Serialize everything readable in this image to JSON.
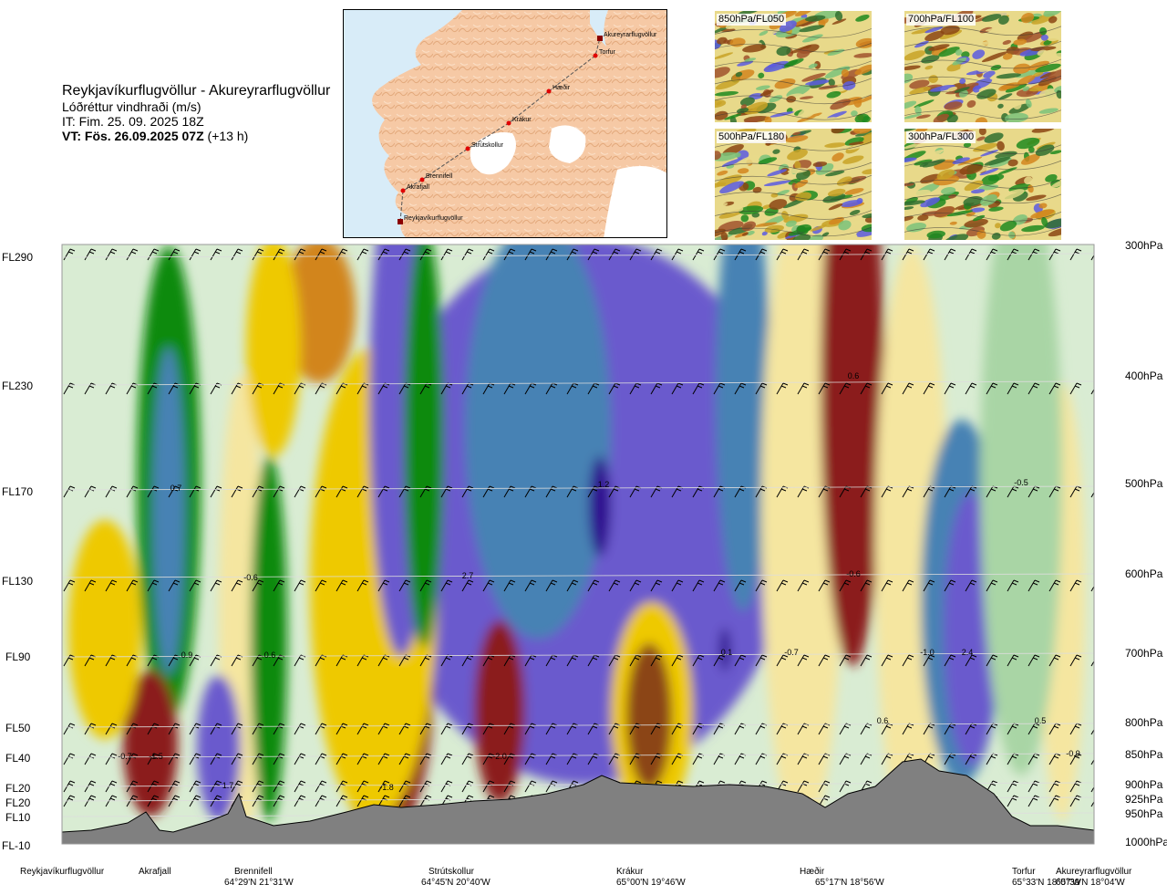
{
  "header": {
    "route": "Reykjavíkurflugvöllur - Akureyrarflugvöllur",
    "parameter": "Lóðréttur vindhraði (m/s)",
    "issue_time": "IT: Fim. 25. 09. 2025 18Z",
    "valid_label": "VT: Fös. 26.09.2025 07Z",
    "valid_offset": "(+13 h)"
  },
  "map": {
    "places": [
      "Akureyrarflugvöllur",
      "Torfur",
      "Hæðir",
      "Krákur",
      "Strútskollur",
      "Brennifell",
      "Akrafjall",
      "Reykjavíkurflugvöllur"
    ],
    "colors": {
      "land": "#f6c9a5",
      "sea": "#d8ecf8",
      "ice": "#ffffff",
      "route": "#555555",
      "marker": "#e00000"
    }
  },
  "thumbnails": [
    {
      "label": "850hPa/FL050"
    },
    {
      "label": "700hPa/FL100"
    },
    {
      "label": "500hPa/FL180"
    },
    {
      "label": "300hPa/FL300"
    }
  ],
  "chart_data": {
    "type": "heatmap",
    "title": "Lóðréttur vindhraði (m/s)",
    "y_levels_fl": [
      {
        "label": "FL290",
        "hpa": "300hPa"
      },
      {
        "label": "FL230",
        "hpa": "400hPa"
      },
      {
        "label": "FL170",
        "hpa": "500hPa"
      },
      {
        "label": "FL130",
        "hpa": "600hPa"
      },
      {
        "label": "FL90",
        "hpa": "700hPa"
      },
      {
        "label": "FL50",
        "hpa": "800hPa"
      },
      {
        "label": "FL40",
        "hpa": "850hPa"
      },
      {
        "label": "FL20",
        "hpa": "900hPa"
      },
      {
        "label": "FL20",
        "hpa": "925hPa"
      },
      {
        "label": "FL10",
        "hpa": "950hPa"
      },
      {
        "label": "FL-10",
        "hpa": "1000hPa"
      }
    ],
    "x_waypoints": [
      {
        "name": "Reykjavíkurflugvöllur",
        "coord": ""
      },
      {
        "name": "Akrafjall",
        "coord": ""
      },
      {
        "name": "Brennifell",
        "coord": "64°29'N 21°31'W"
      },
      {
        "name": "Strútskollur",
        "coord": "64°45'N 20°40'W"
      },
      {
        "name": "Krákur",
        "coord": "65°00'N 19°46'W"
      },
      {
        "name": "Hæðir",
        "coord": "65°17'N 18°56'W"
      },
      {
        "name": "Torfur",
        "coord": "65°33'N 18°07'W"
      },
      {
        "name": "Akureyrarflugvöllur",
        "coord": "65°39'N 18°04'W"
      }
    ],
    "color_scale": [
      "#8b1a1a",
      "#8b4513",
      "#d2851d",
      "#eec900",
      "#f5e6a0",
      "#f3f3d8",
      "#d9ecd3",
      "#a9d5a5",
      "#5fb35f",
      "#108a10",
      "#4682b4",
      "#6a5acd",
      "#2e0f8f"
    ],
    "values_labeled": [
      "-0.7",
      "-1.5",
      "0.7",
      "-0.6",
      "0.9",
      "0.6",
      "1.7",
      "-1.8",
      "-2.0",
      "2.7",
      "1.2",
      "0.1",
      "0.6",
      "-0.6",
      "-0.7",
      "-1.0",
      "2.4",
      "0.6",
      "0.5",
      "-0.5",
      "-0.9"
    ],
    "terrain_color": "#808080"
  }
}
